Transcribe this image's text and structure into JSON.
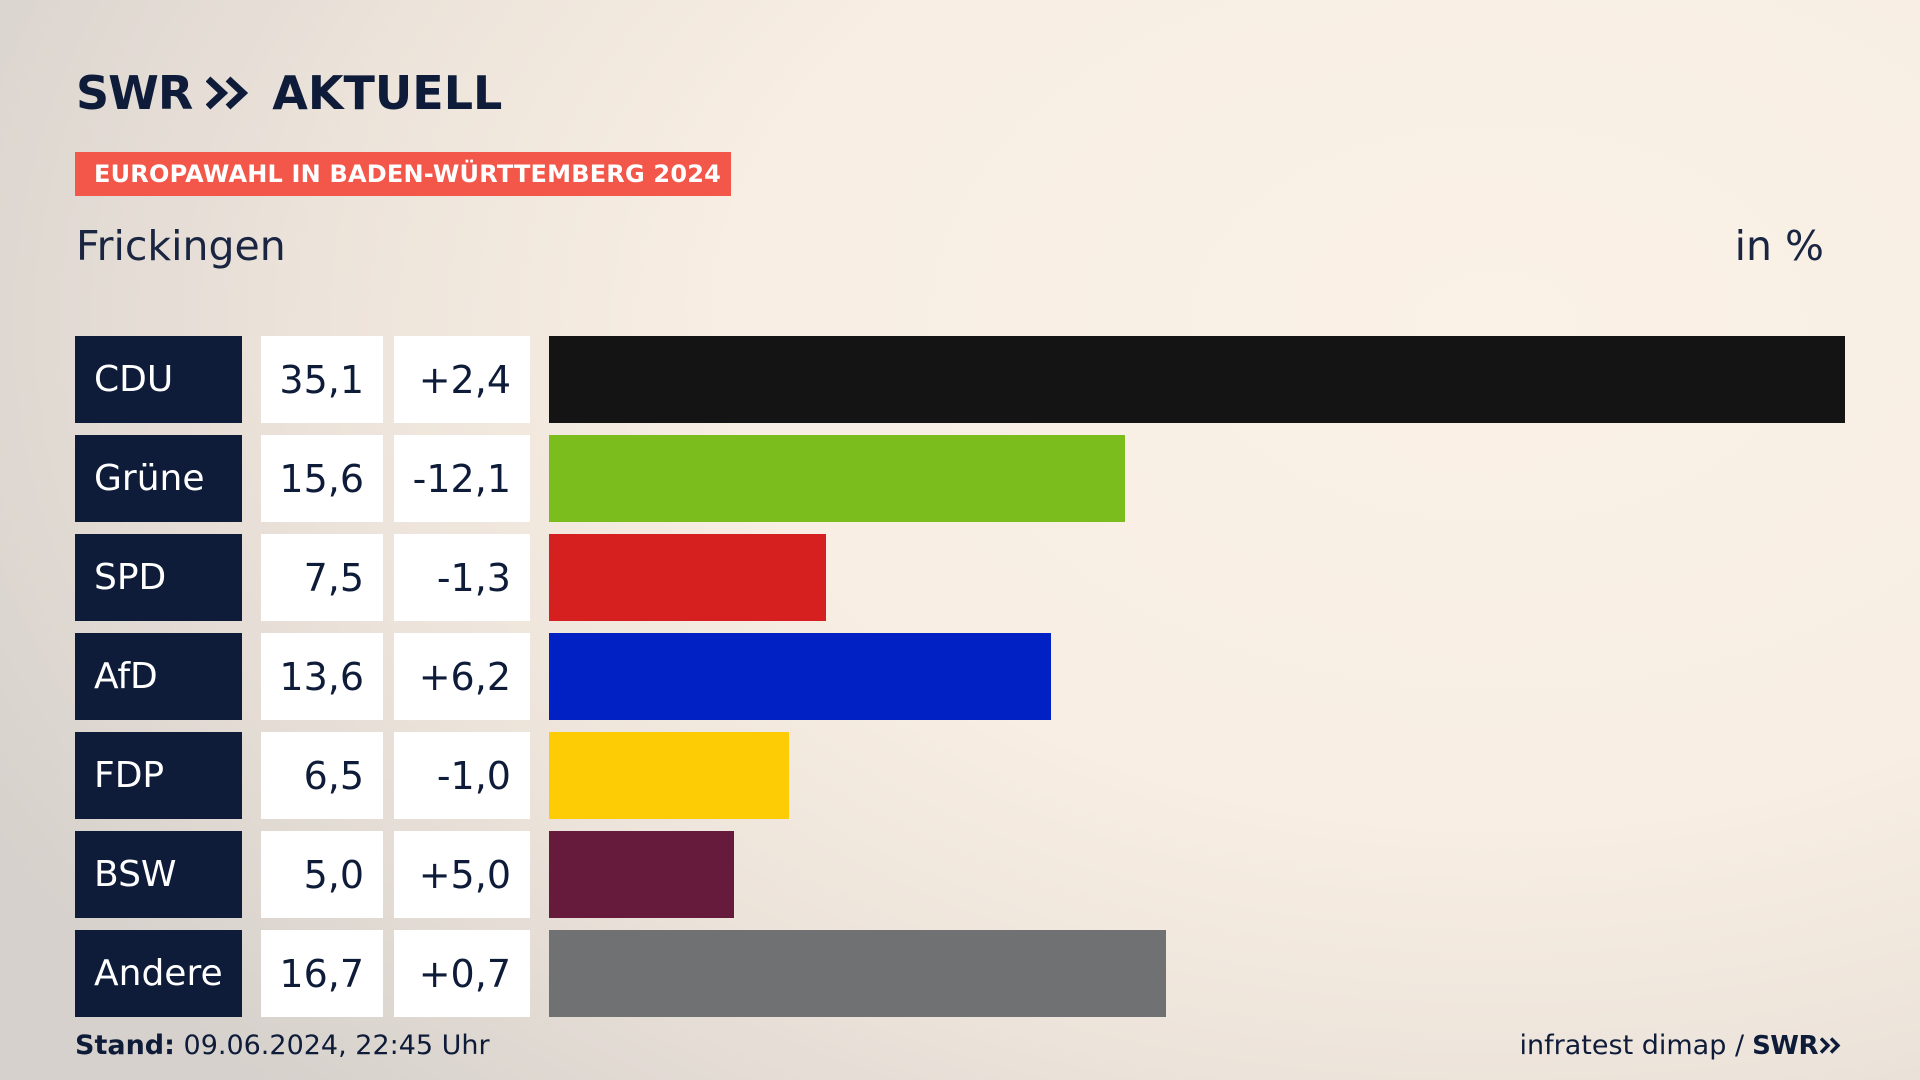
{
  "brand": {
    "name_part1": "SWR",
    "name_part2": "AKTUELL",
    "footer_name": "SWR"
  },
  "badge": {
    "label": "EUROPAWAHL IN BADEN-WÜRTTEMBERG 2024",
    "color": "#f2574a"
  },
  "header": {
    "place": "Frickingen",
    "unit": "in %"
  },
  "chart_data": {
    "type": "bar",
    "orientation": "horizontal",
    "categories": [
      "CDU",
      "Grüne",
      "SPD",
      "AfD",
      "FDP",
      "BSW",
      "Andere"
    ],
    "values": [
      35.1,
      15.6,
      7.5,
      13.6,
      6.5,
      5.0,
      16.7
    ],
    "value_labels": [
      "35,1",
      "15,6",
      "7,5",
      "13,6",
      "6,5",
      "5,0",
      "16,7"
    ],
    "diff_labels": [
      "+2,4",
      "-12,1",
      "-1,3",
      "+6,2",
      "-1,0",
      "+5,0",
      "+0,7"
    ],
    "colors": [
      "#141414",
      "#7bbd1c",
      "#d61f1f",
      "#0221c4",
      "#fecc04",
      "#661a3c",
      "#707172"
    ],
    "xlim": [
      0,
      35.1
    ],
    "unit": "in %",
    "grid": false
  },
  "footer": {
    "stand_label": "Stand:",
    "stand_value": "09.06.2024, 22:45 Uhr",
    "source": "infratest dimap /"
  }
}
